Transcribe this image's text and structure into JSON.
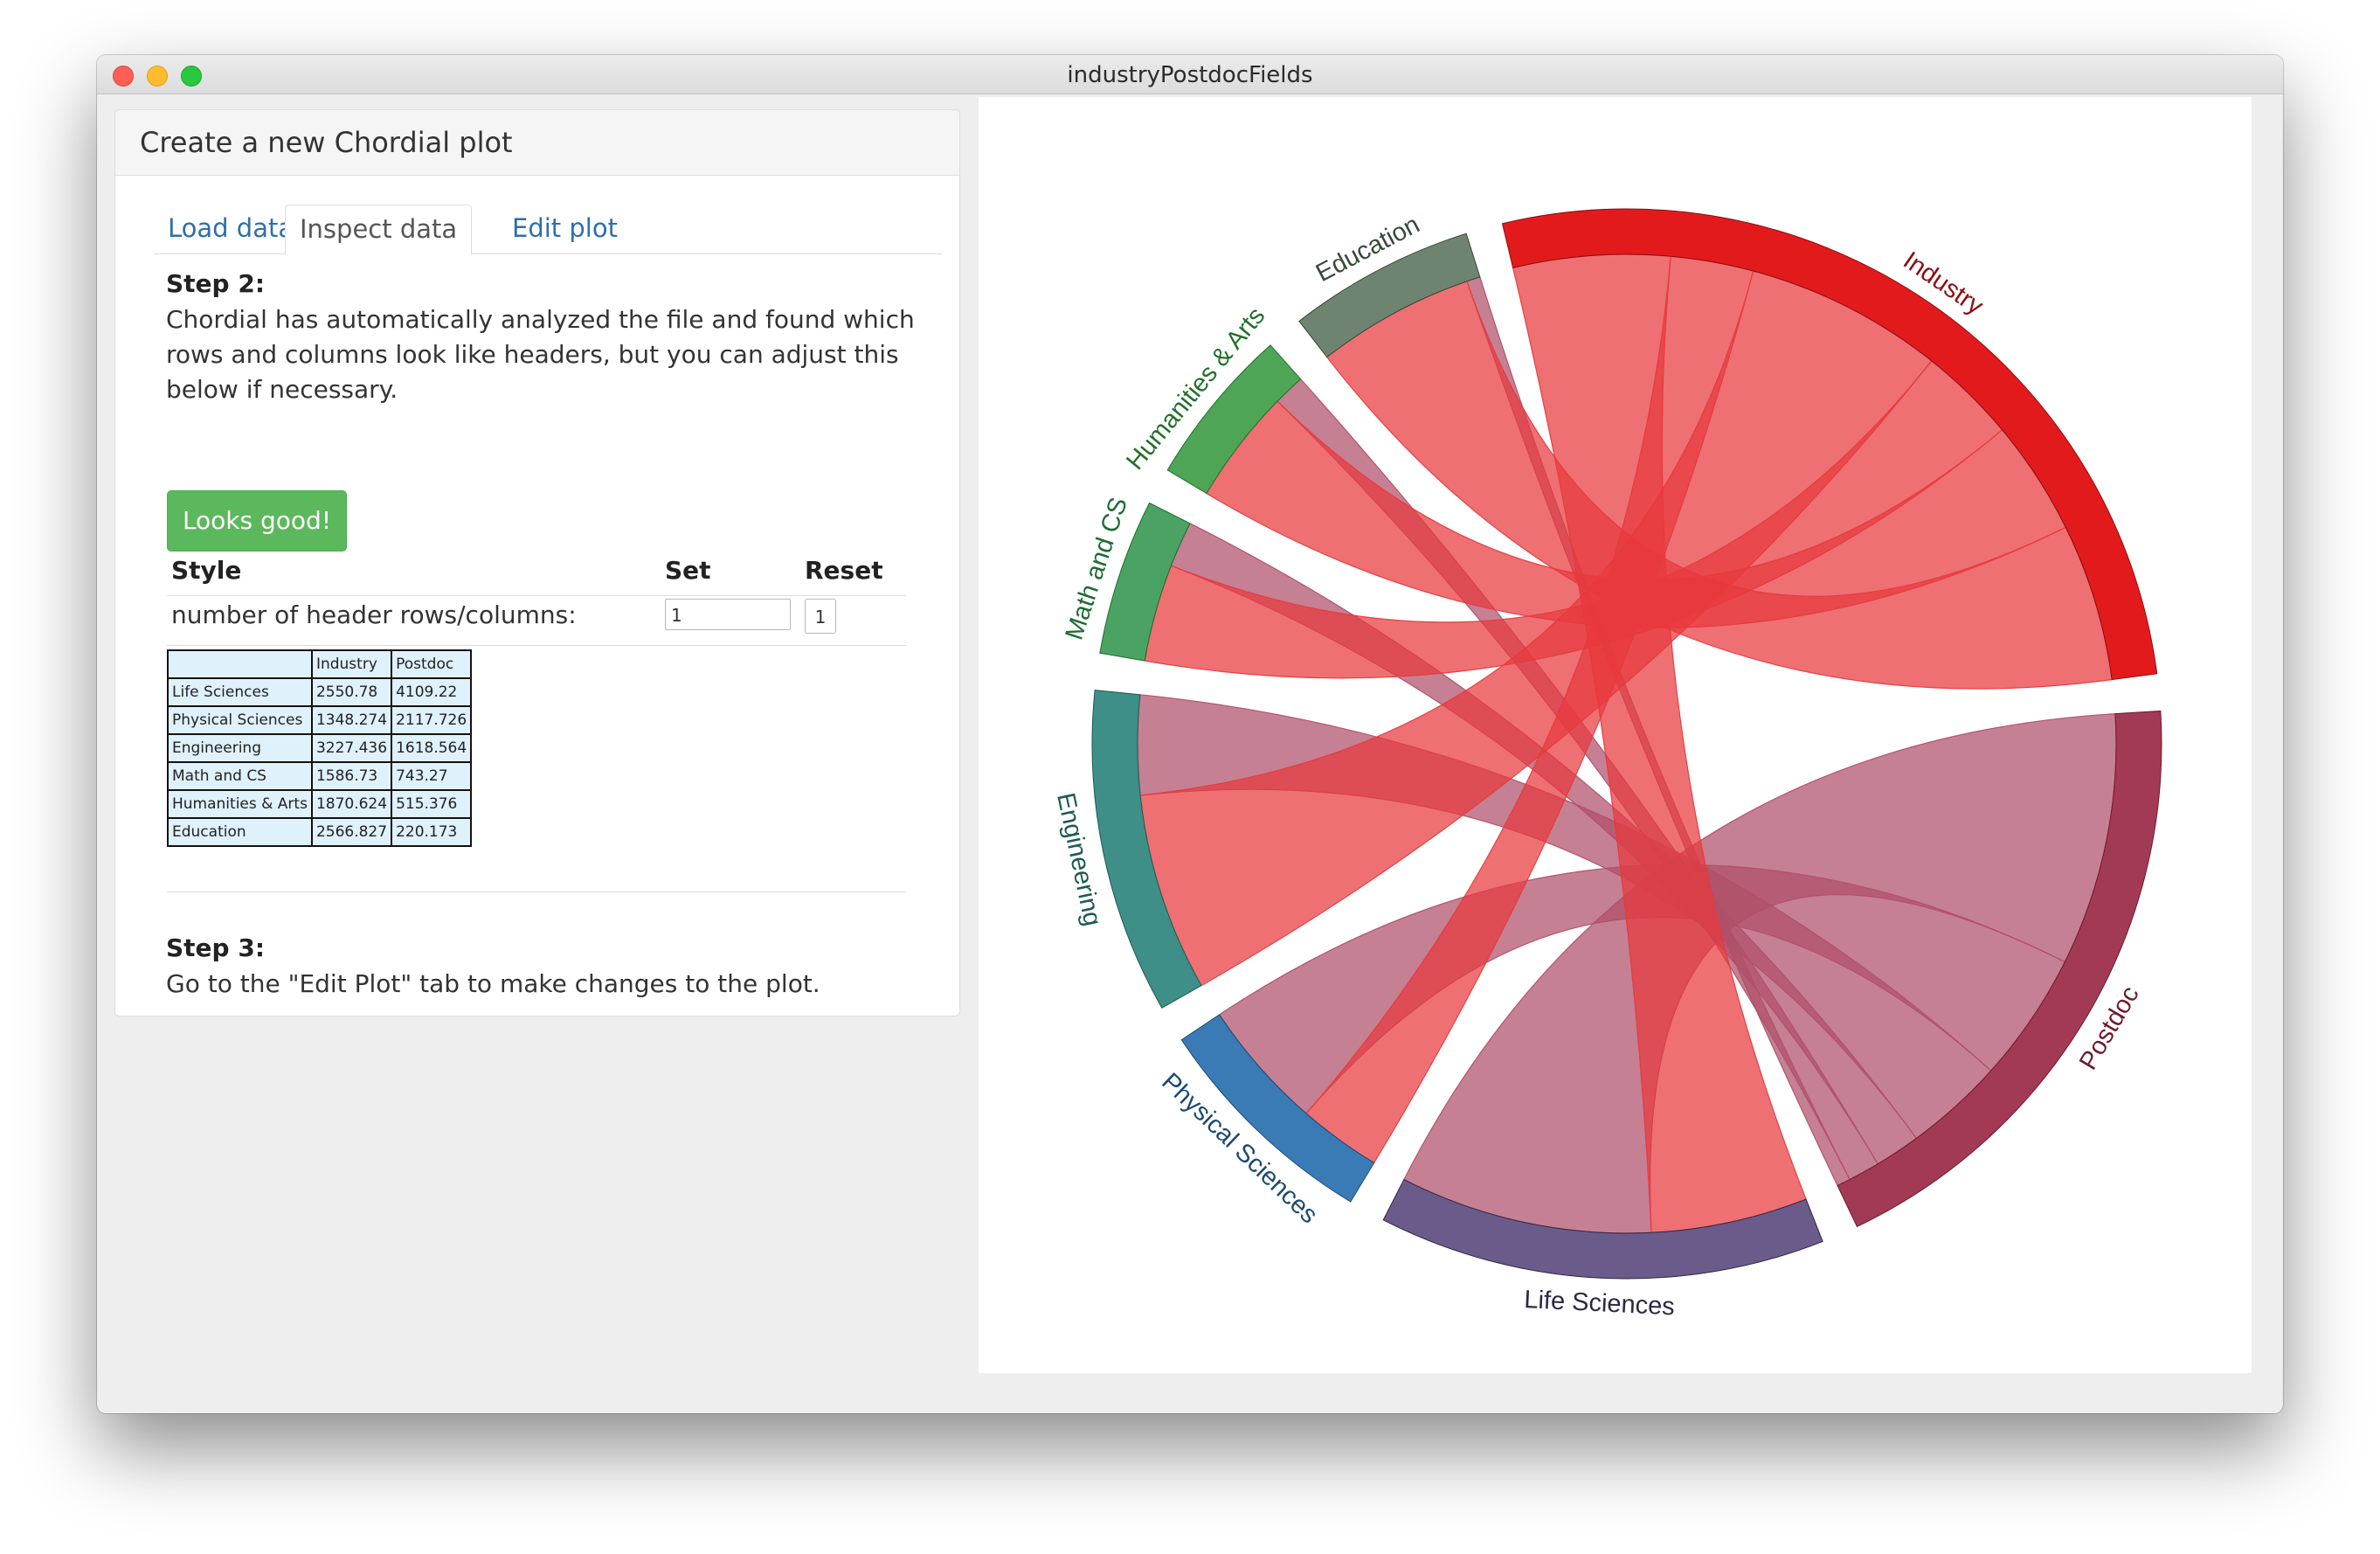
{
  "window": {
    "title": "industryPostdocFields"
  },
  "panel": {
    "title": "Create a new Chordial plot",
    "tabs": [
      {
        "label": "Load data",
        "active": false
      },
      {
        "label": "Inspect data",
        "active": true
      },
      {
        "label": "Edit plot",
        "active": false
      }
    ],
    "step2": {
      "title": "Step 2:",
      "text": "Chordial has automatically analyzed the file and found which rows and columns look like headers, but you can adjust this below if necessary."
    },
    "looks_good_button": "Looks good!",
    "settings": {
      "headers": [
        "Style",
        "Set",
        "Reset"
      ],
      "row_label": "number of header rows/columns:",
      "value": "1",
      "reset_label": "1"
    },
    "preview_table": {
      "header": [
        "",
        "Industry",
        "Postdoc"
      ],
      "rows": [
        [
          "Life Sciences",
          "2550.78",
          "4109.22"
        ],
        [
          "Physical Sciences",
          "1348.274",
          "2117.726"
        ],
        [
          "Engineering",
          "3227.436",
          "1618.564"
        ],
        [
          "Math and CS",
          "1586.73",
          "743.27"
        ],
        [
          "Humanities & Arts",
          "1870.624",
          "515.376"
        ],
        [
          "Education",
          "2566.827",
          "220.173"
        ]
      ]
    },
    "step3": {
      "title": "Step 3:",
      "text": "Go to the \"Edit Plot\" tab to make changes to the plot."
    }
  },
  "chart_data": {
    "type": "chord",
    "groups": [
      {
        "name": "Industry",
        "color": "#e31a1c",
        "label_color": "#8b0e10"
      },
      {
        "name": "Postdoc",
        "color": "#a33a55",
        "label_color": "#6e1a2d"
      },
      {
        "name": "Life Sciences",
        "color": "#6a5b8a",
        "label_color": "#2e2745"
      },
      {
        "name": "Physical Sciences",
        "color": "#3a7bb5",
        "label_color": "#1b4a70"
      },
      {
        "name": "Engineering",
        "color": "#3e8f87",
        "label_color": "#1d5a54"
      },
      {
        "name": "Math and CS",
        "color": "#4aa363",
        "label_color": "#1e6b33"
      },
      {
        "name": "Humanities & Arts",
        "color": "#4ea556",
        "label_color": "#23702b"
      },
      {
        "name": "Education",
        "color": "#6e8470",
        "label_color": "#354a37"
      }
    ],
    "matrix": [
      [
        0,
        0,
        2550.78,
        1348.274,
        3227.436,
        1586.73,
        1870.624,
        2566.827
      ],
      [
        0,
        0,
        4109.22,
        2117.726,
        1618.564,
        743.27,
        515.376,
        220.173
      ],
      [
        2550.78,
        4109.22,
        0,
        0,
        0,
        0,
        0,
        0
      ],
      [
        1348.274,
        2117.726,
        0,
        0,
        0,
        0,
        0,
        0
      ],
      [
        3227.436,
        1618.564,
        0,
        0,
        0,
        0,
        0,
        0
      ],
      [
        1586.73,
        743.27,
        0,
        0,
        0,
        0,
        0,
        0
      ],
      [
        1870.624,
        515.376,
        0,
        0,
        0,
        0,
        0,
        0
      ],
      [
        2566.827,
        220.173,
        0,
        0,
        0,
        0,
        0,
        0
      ]
    ],
    "ribbon_colors": {
      "Industry": "#e8393d",
      "Postdoc": "#b04f69"
    }
  }
}
